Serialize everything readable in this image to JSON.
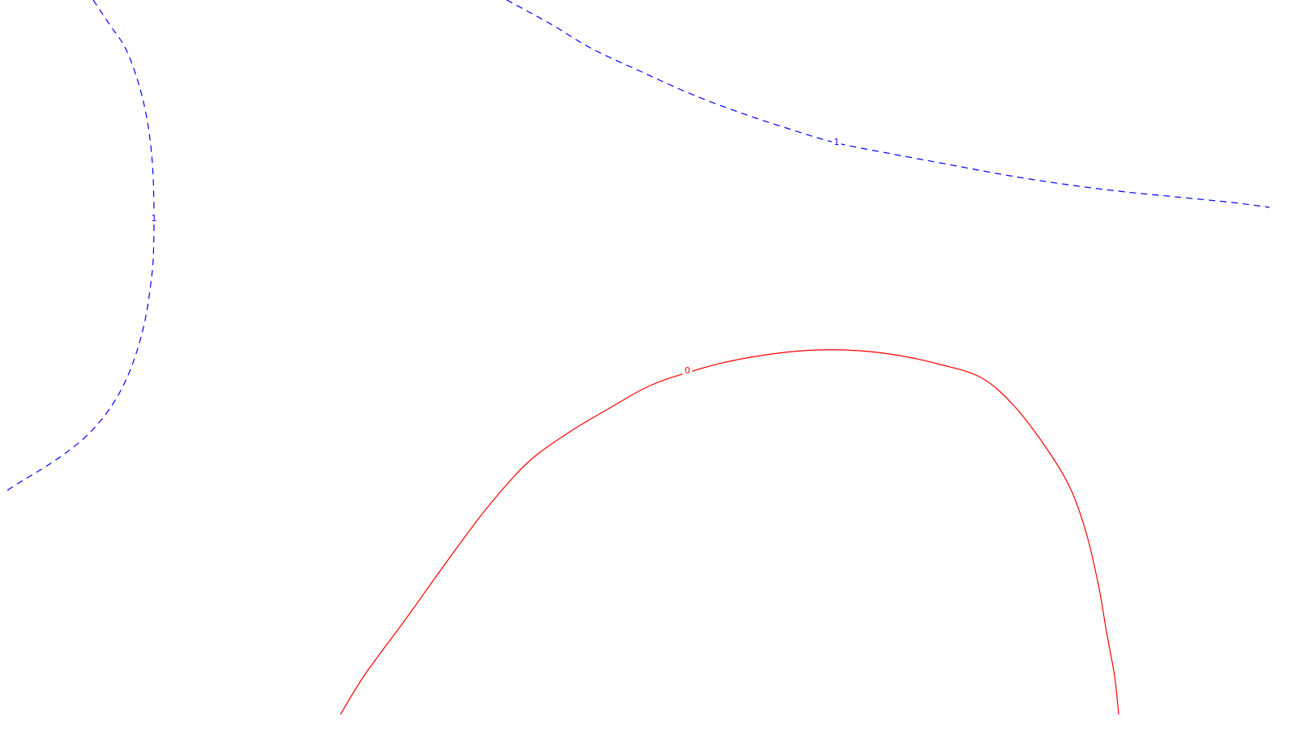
{
  "chart_data": {
    "type": "line",
    "title": "",
    "xlabel": "",
    "ylabel": "",
    "grid": false,
    "legend": "none",
    "colors": {
      "level_0": "#ff0000",
      "level_1": "#0000ff"
    },
    "contours": [
      {
        "id": "upper-left-contour",
        "level_label": "1",
        "color": "#0000ff",
        "line_style": "dashed",
        "x": [
          115,
          135,
          155,
          170,
          180,
          186,
          189,
          190,
          189,
          186,
          180,
          170,
          155,
          135,
          110,
          80,
          50,
          25,
          5
        ],
        "y": [
          0,
          30,
          60,
          100,
          140,
          180,
          220,
          270,
          320,
          350,
          390,
          430,
          470,
          505,
          535,
          560,
          580,
          595,
          608
        ]
      },
      {
        "id": "upper-right-contour",
        "level_label": "1",
        "color": "#0000ff",
        "line_style": "dashed",
        "x": [
          625,
          680,
          730,
          790,
          850,
          910,
          970,
          1030,
          1100,
          1170,
          1240,
          1310,
          1380,
          1450,
          1520,
          1566
        ],
        "y": [
          0,
          30,
          60,
          88,
          115,
          138,
          158,
          176,
          190,
          203,
          216,
          227,
          236,
          243,
          250,
          256
        ]
      },
      {
        "id": "lower-contour",
        "level_label": "0",
        "color": "#ff0000",
        "line_style": "solid",
        "x": [
          420,
          450,
          500,
          550,
          600,
          650,
          700,
          750,
          800,
          848,
          900,
          960,
          1010,
          1060,
          1110,
          1160,
          1210,
          1250,
          1290,
          1320,
          1340,
          1355,
          1365,
          1375,
          1380
        ],
        "y": [
          882,
          833,
          765,
          695,
          628,
          572,
          535,
          505,
          477,
          460,
          446,
          436,
          432,
          433,
          439,
          450,
          466,
          500,
          552,
          602,
          658,
          722,
          780,
          835,
          882
        ]
      }
    ],
    "labels": [
      {
        "text": "1",
        "contour": "upper-left-contour",
        "x": 190,
        "y": 270
      },
      {
        "text": "1",
        "contour": "upper-right-contour",
        "x": 1032,
        "y": 176
      },
      {
        "text": "0",
        "contour": "lower-contour",
        "x": 848,
        "y": 458
      }
    ]
  }
}
